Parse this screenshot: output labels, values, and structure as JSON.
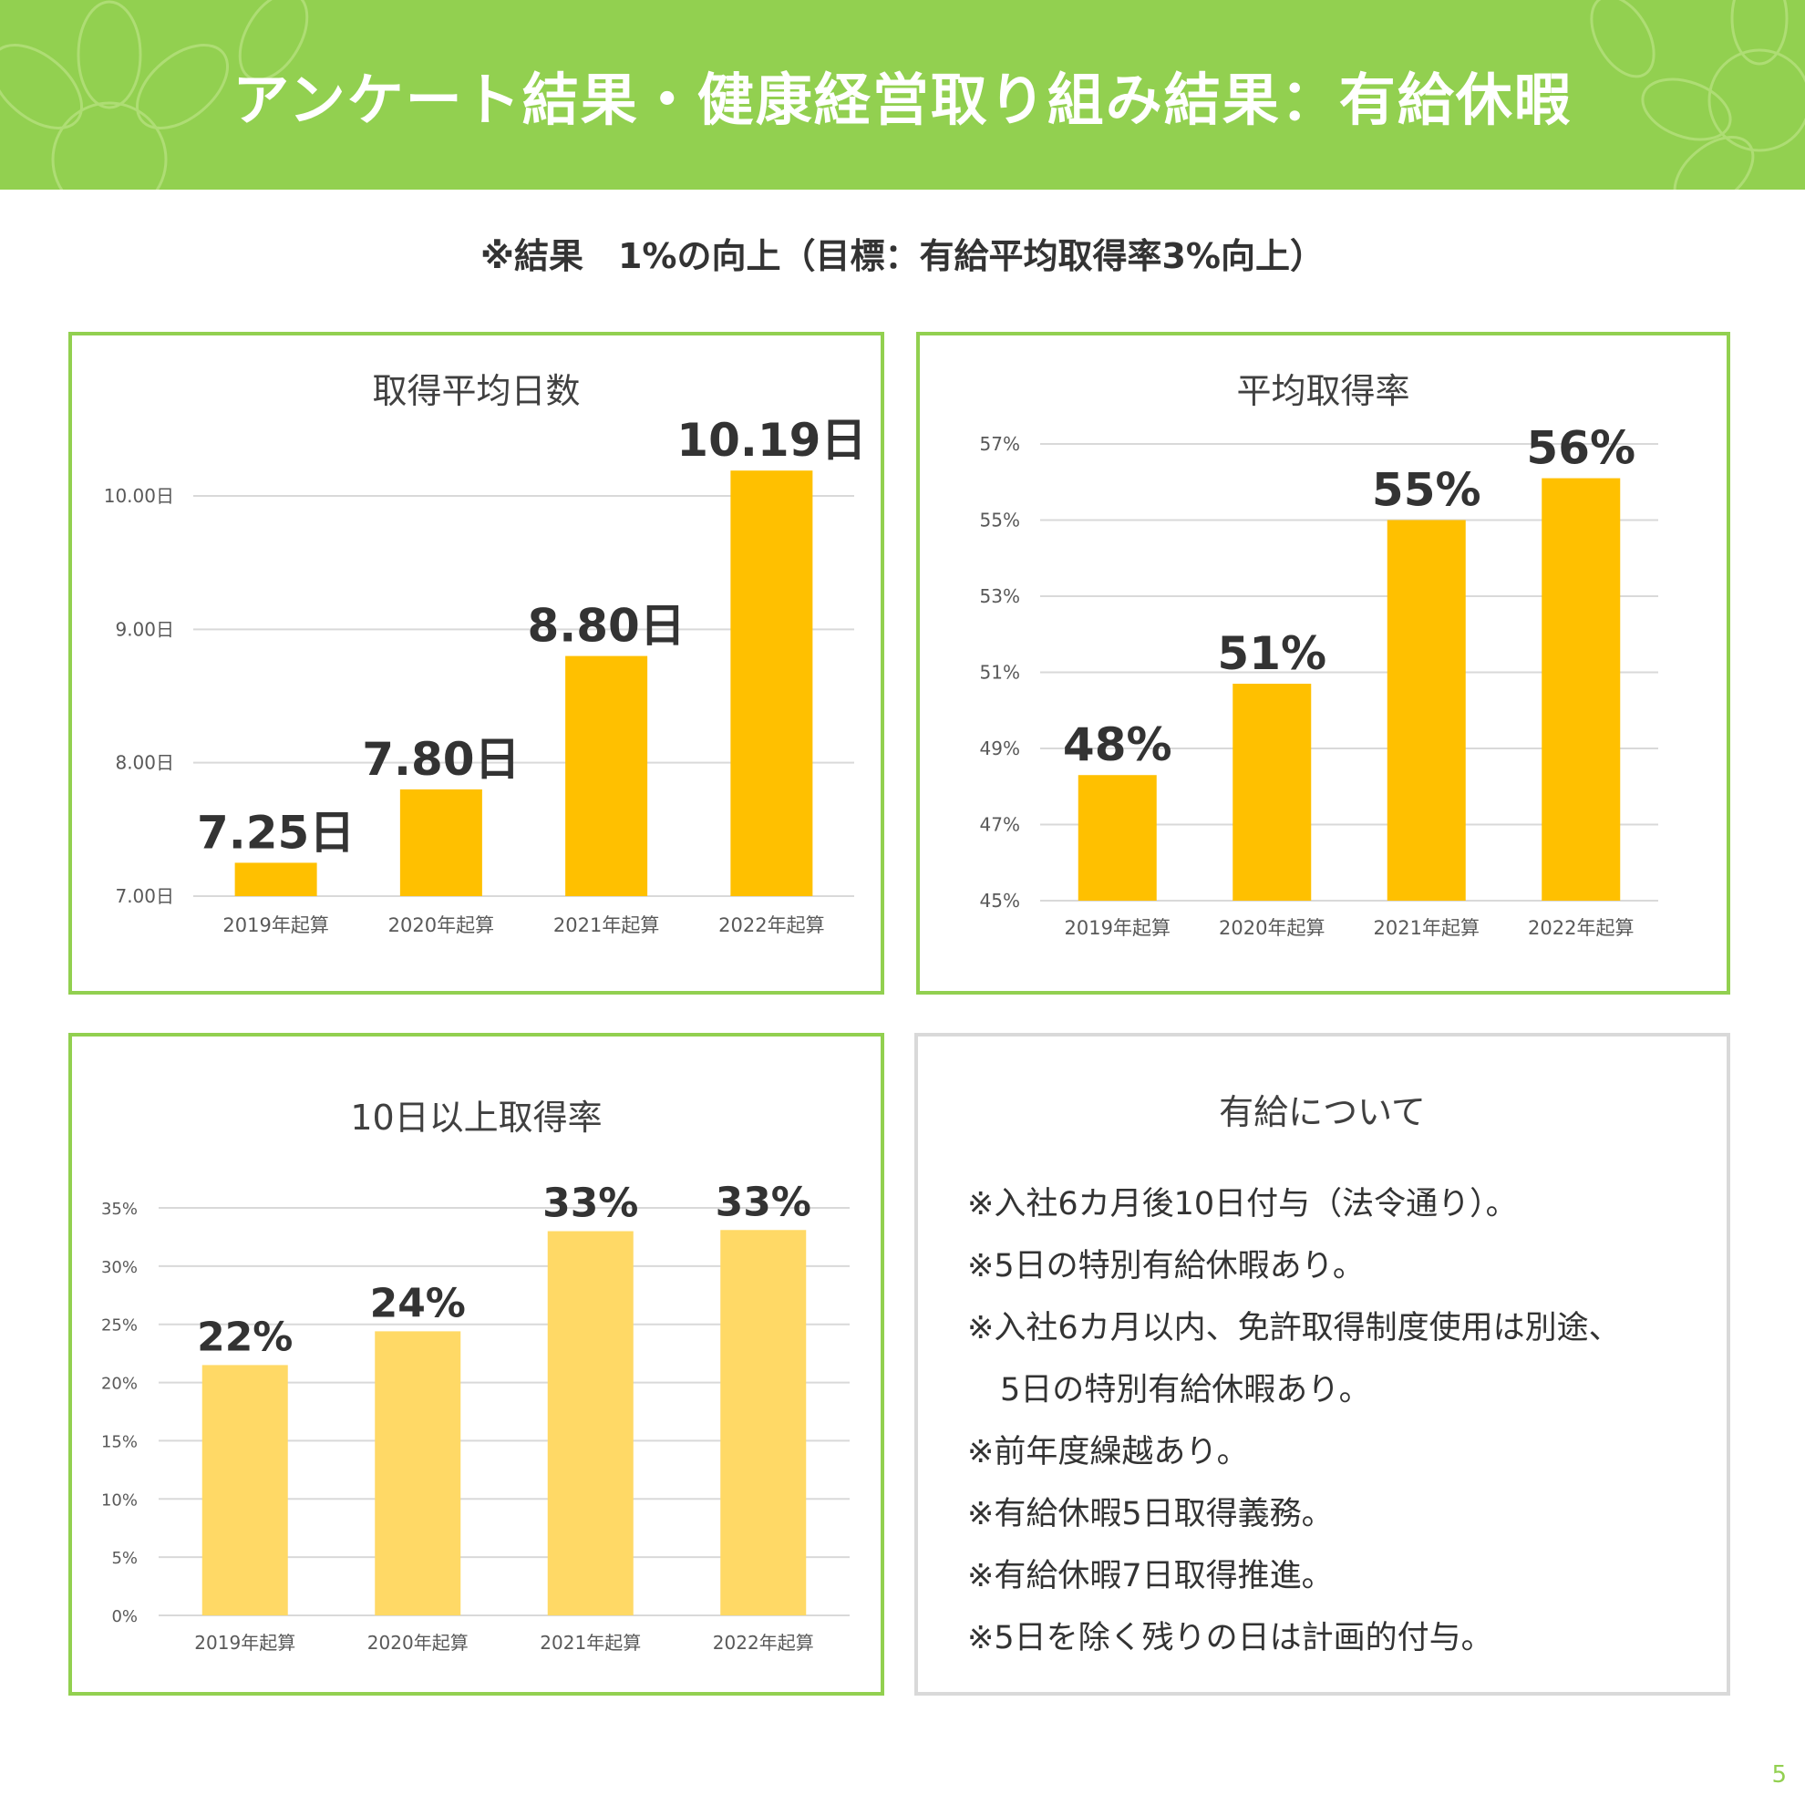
{
  "header": {
    "title": "アンケート結果・健康経営取り組み結果：有給休暇",
    "banner_color": "#92d050"
  },
  "subtitle": "※結果　1%の向上（目標：有給平均取得率3%向上）",
  "chart_data": [
    {
      "type": "bar",
      "title": "取得平均日数",
      "categories": [
        "2019年起算",
        "2020年起算",
        "2021年起算",
        "2022年起算"
      ],
      "values": [
        7.25,
        7.8,
        8.8,
        10.19
      ],
      "data_labels": [
        "7.25日",
        "7.80日",
        "8.80日",
        "10.19日"
      ],
      "y_ticks": [
        "7.00日",
        "8.00日",
        "9.00日",
        "10.00日"
      ],
      "ylim": [
        7,
        10.3
      ],
      "grid": true,
      "bar_color": "#ffc000"
    },
    {
      "type": "bar",
      "title": "平均取得率",
      "categories": [
        "2019年起算",
        "2020年起算",
        "2021年起算",
        "2022年起算"
      ],
      "values": [
        48.3,
        50.7,
        55,
        56.1
      ],
      "data_labels": [
        "48%",
        "51%",
        "55%",
        "56%"
      ],
      "y_ticks": [
        "45%",
        "47%",
        "49%",
        "51%",
        "53%",
        "55%",
        "57%"
      ],
      "ylim": [
        45,
        57
      ],
      "grid": true,
      "bar_color": "#ffc000"
    },
    {
      "type": "bar",
      "title": "10日以上取得率",
      "categories": [
        "2019年起算",
        "2020年起算",
        "2021年起算",
        "2022年起算"
      ],
      "values": [
        21.5,
        24.4,
        33,
        33.1
      ],
      "data_labels": [
        "22%",
        "24%",
        "33%",
        "33%"
      ],
      "y_ticks": [
        "0%",
        "5%",
        "10%",
        "15%",
        "20%",
        "25%",
        "30%",
        "35%"
      ],
      "ylim": [
        0,
        35
      ],
      "grid": true,
      "bar_color": "#ffd966"
    }
  ],
  "info": {
    "title": "有給について",
    "items": [
      "※入社6カ月後10日付与（法令通り）。",
      "※5日の特別有給休暇あり。",
      "※入社6カ月以内、免許取得制度使用は別途、",
      "5日の特別有給休暇あり。",
      "※前年度繰越あり。",
      "※有給休暇5日取得義務。",
      "※有給休暇7日取得推進。",
      "※5日を除く残りの日は計画的付与。"
    ]
  },
  "page_number": "5"
}
